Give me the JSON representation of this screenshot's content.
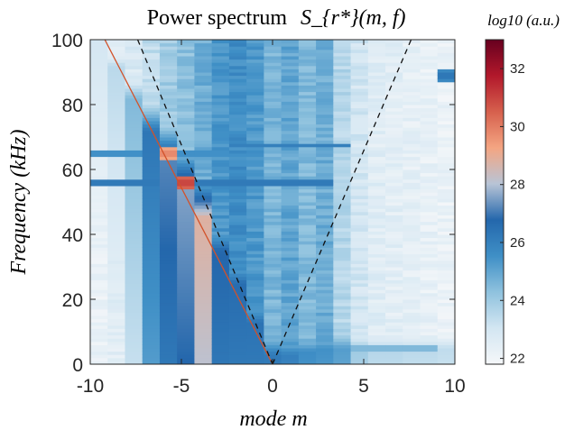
{
  "chart_data": {
    "type": "heatmap",
    "title": "Power spectrum",
    "title_math": "S_{r*}(m, f)",
    "xlabel": "mode m",
    "ylabel": "Frequency (kHz)",
    "colorbar_label": "log10 (a.u.)",
    "xlim": [
      -10,
      10
    ],
    "ylim": [
      0,
      100
    ],
    "x_ticks": [
      "-10",
      "-5",
      "0",
      "5",
      "10"
    ],
    "y_ticks": [
      "0",
      "20",
      "40",
      "60",
      "80",
      "100"
    ],
    "colorbar_range": [
      21.8,
      33
    ],
    "colorbar_ticks": [
      "22",
      "24",
      "26",
      "28",
      "30",
      "32"
    ],
    "colormap": [
      "#f5f7f9",
      "#d3e6f2",
      "#8fc2de",
      "#3f8fc6",
      "#2467ac",
      "#b8c4d6",
      "#f4a582",
      "#d6604d",
      "#b2182b",
      "#67001f"
    ],
    "grid": false,
    "modes": [
      -10,
      -9,
      -8,
      -7,
      -6,
      -5,
      -4,
      -3,
      -2,
      -1,
      0,
      1,
      2,
      3,
      4,
      5,
      6,
      7,
      8,
      9,
      10
    ],
    "column_base_level": [
      22.2,
      22.5,
      22.8,
      23.4,
      24.0,
      24.3,
      24.8,
      25.4,
      25.6,
      25.3,
      24.6,
      25.0,
      24.5,
      24.8,
      23.6,
      23.0,
      22.6,
      22.5,
      22.4,
      22.3,
      22.2
    ],
    "ridge_frequency_khz": [
      100,
      92,
      82,
      72,
      64,
      56,
      45,
      35,
      25,
      13,
      3,
      3,
      4,
      5,
      5,
      5,
      5,
      5,
      5,
      5,
      5
    ],
    "ridge_level": [
      23.0,
      23.5,
      24.5,
      26.3,
      27.2,
      27.6,
      28.8,
      26.8,
      26.6,
      26.4,
      26.2,
      26.0,
      25.6,
      25.5,
      25.2,
      24.0,
      23.6,
      23.6,
      23.5,
      23.5,
      23.4
    ],
    "peaks": [
      {
        "m": -6,
        "f": 65,
        "level": 30.0
      },
      {
        "m": -5,
        "f": 56,
        "level": 31.2
      },
      {
        "m": -4,
        "f": 45,
        "level": 29.0
      },
      {
        "m": 10,
        "f": 89,
        "level": 26.5
      }
    ],
    "horizontal_lines": [
      {
        "f": 65,
        "m_range": [
          -10,
          -1
        ],
        "level": 25.5
      },
      {
        "f": 56,
        "m_range": [
          -10,
          3
        ],
        "level": 26.2
      },
      {
        "f": 67.5,
        "m_range": [
          -2,
          4
        ],
        "level": 26.0
      },
      {
        "f": 5,
        "m_range": [
          2,
          9
        ],
        "level": 24.5
      }
    ],
    "overlay_lines": [
      {
        "style": "solid",
        "color": "#d2522a",
        "points": [
          [
            -9.2,
            100
          ],
          [
            0,
            0
          ]
        ]
      },
      {
        "style": "dashed",
        "color": "#111111",
        "points": [
          [
            -7.4,
            100
          ],
          [
            0,
            0
          ]
        ]
      },
      {
        "style": "dashed",
        "color": "#111111",
        "points": [
          [
            0,
            0
          ],
          [
            7.6,
            100
          ]
        ]
      }
    ]
  }
}
